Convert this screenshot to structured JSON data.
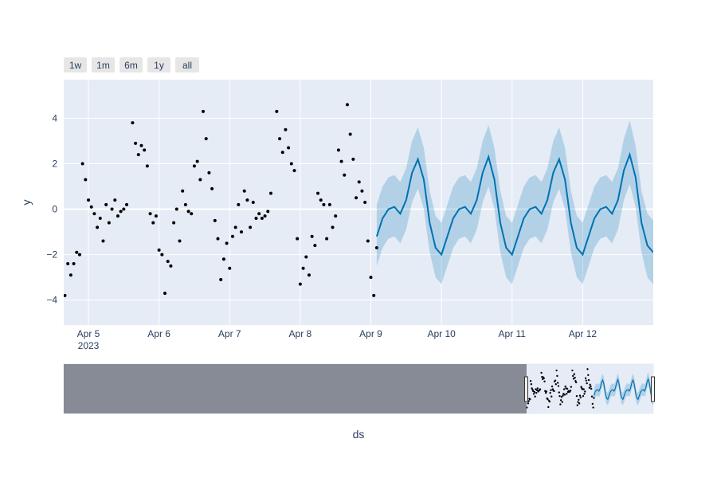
{
  "chart_data": {
    "type": "forecast",
    "x_label": "ds",
    "y_label": "y",
    "range_buttons": [
      "1w",
      "1m",
      "6m",
      "1y",
      "all"
    ],
    "xlim": [
      "2023-04-04 15:36",
      "2023-04-13 00:00"
    ],
    "xticks": [
      {
        "value": "2023-04-05 00:00",
        "label": "Apr 5\n2023"
      },
      {
        "value": "2023-04-06 00:00",
        "label": "Apr 6"
      },
      {
        "value": "2023-04-07 00:00",
        "label": "Apr 7"
      },
      {
        "value": "2023-04-08 00:00",
        "label": "Apr 8"
      },
      {
        "value": "2023-04-09 00:00",
        "label": "Apr 9"
      },
      {
        "value": "2023-04-10 00:00",
        "label": "Apr 10"
      },
      {
        "value": "2023-04-11 00:00",
        "label": "Apr 11"
      },
      {
        "value": "2023-04-12 00:00",
        "label": "Apr 12"
      }
    ],
    "ylim": [
      -5.1,
      5.7
    ],
    "yticks": [
      {
        "value": -4,
        "label": "−4"
      },
      {
        "value": -2,
        "label": "−2"
      },
      0,
      2,
      4
    ],
    "grid": true,
    "rangeslider": true,
    "series": [
      {
        "mode": "markers",
        "color": "#000000",
        "x": [
          "2023-04-04 16:00",
          "2023-04-04 17:00",
          "2023-04-04 18:00",
          "2023-04-04 19:00",
          "2023-04-04 20:00",
          "2023-04-04 21:00",
          "2023-04-04 22:00",
          "2023-04-04 23:00",
          "2023-04-05 00:00",
          "2023-04-05 01:00",
          "2023-04-05 02:00",
          "2023-04-05 03:00",
          "2023-04-05 04:00",
          "2023-04-05 05:00",
          "2023-04-05 06:00",
          "2023-04-05 07:00",
          "2023-04-05 08:00",
          "2023-04-05 09:00",
          "2023-04-05 10:00",
          "2023-04-05 11:00",
          "2023-04-05 12:00",
          "2023-04-05 13:00",
          "2023-04-05 15:00",
          "2023-04-05 16:00",
          "2023-04-05 17:00",
          "2023-04-05 18:00",
          "2023-04-05 19:00",
          "2023-04-05 20:00",
          "2023-04-05 21:00",
          "2023-04-05 22:00",
          "2023-04-05 23:00",
          "2023-04-06 00:00",
          "2023-04-06 01:00",
          "2023-04-06 02:00",
          "2023-04-06 03:00",
          "2023-04-06 04:00",
          "2023-04-06 05:00",
          "2023-04-06 06:00",
          "2023-04-06 07:00",
          "2023-04-06 08:00",
          "2023-04-06 09:00",
          "2023-04-06 10:00",
          "2023-04-06 11:00",
          "2023-04-06 12:00",
          "2023-04-06 13:00",
          "2023-04-06 14:00",
          "2023-04-06 15:00",
          "2023-04-06 16:00",
          "2023-04-06 17:00",
          "2023-04-06 18:00",
          "2023-04-06 19:00",
          "2023-04-06 20:00",
          "2023-04-06 21:00",
          "2023-04-06 22:00",
          "2023-04-06 23:00",
          "2023-04-07 00:00",
          "2023-04-07 01:00",
          "2023-04-07 02:00",
          "2023-04-07 03:00",
          "2023-04-07 04:00",
          "2023-04-07 05:00",
          "2023-04-07 06:00",
          "2023-04-07 07:00",
          "2023-04-07 08:00",
          "2023-04-07 09:00",
          "2023-04-07 10:00",
          "2023-04-07 11:00",
          "2023-04-07 12:00",
          "2023-04-07 13:00",
          "2023-04-07 14:00",
          "2023-04-07 16:00",
          "2023-04-07 17:00",
          "2023-04-07 18:00",
          "2023-04-07 19:00",
          "2023-04-07 20:00",
          "2023-04-07 21:00",
          "2023-04-07 22:00",
          "2023-04-07 23:00",
          "2023-04-08 00:00",
          "2023-04-08 01:00",
          "2023-04-08 02:00",
          "2023-04-08 03:00",
          "2023-04-08 04:00",
          "2023-04-08 05:00",
          "2023-04-08 06:00",
          "2023-04-08 07:00",
          "2023-04-08 08:00",
          "2023-04-08 09:00",
          "2023-04-08 10:00",
          "2023-04-08 11:00",
          "2023-04-08 12:00",
          "2023-04-08 13:00",
          "2023-04-08 14:00",
          "2023-04-08 15:00",
          "2023-04-08 16:00",
          "2023-04-08 17:00",
          "2023-04-08 18:00",
          "2023-04-08 19:00",
          "2023-04-08 20:00",
          "2023-04-08 21:00",
          "2023-04-08 22:00",
          "2023-04-08 23:00",
          "2023-04-09 00:00",
          "2023-04-09 01:00",
          "2023-04-09 02:00"
        ],
        "values": [
          -3.8,
          -2.4,
          -2.9,
          -2.4,
          -1.9,
          -2.0,
          2.0,
          1.3,
          0.4,
          0.1,
          -0.2,
          -0.8,
          -0.4,
          -1.4,
          0.2,
          -0.6,
          0.0,
          0.4,
          -0.3,
          -0.1,
          0.0,
          0.2,
          3.8,
          2.9,
          2.4,
          2.8,
          2.6,
          1.9,
          -0.2,
          -0.6,
          -0.3,
          -1.8,
          -2.0,
          -3.7,
          -2.3,
          -2.5,
          -0.6,
          0.0,
          -1.4,
          0.8,
          0.2,
          -0.1,
          -0.2,
          1.9,
          2.1,
          1.3,
          4.3,
          3.1,
          1.6,
          0.9,
          -0.5,
          -1.3,
          -3.1,
          -2.2,
          -1.5,
          -2.6,
          -1.2,
          -0.8,
          0.2,
          -1.0,
          0.8,
          0.4,
          -0.8,
          0.3,
          -0.4,
          -0.2,
          -0.4,
          -0.3,
          -0.1,
          0.7,
          4.3,
          3.1,
          2.5,
          3.5,
          2.7,
          2.0,
          1.7,
          -1.3,
          -3.3,
          -2.6,
          -2.1,
          -2.9,
          -1.2,
          -1.6,
          0.7,
          0.4,
          0.2,
          -1.3,
          0.2,
          -0.8,
          -0.3,
          2.6,
          2.1,
          1.5,
          4.6,
          3.3,
          2.2,
          0.5,
          1.2,
          0.8,
          0.3,
          -1.4,
          -3.0,
          -3.8,
          -1.7
        ]
      },
      {
        "mode": "lines",
        "color": "#0072b2",
        "band_color": "rgba(0,114,178,0.22)",
        "x": [
          "2023-04-09 02:00",
          "2023-04-09 04:00",
          "2023-04-09 06:00",
          "2023-04-09 08:00",
          "2023-04-09 10:00",
          "2023-04-09 12:00",
          "2023-04-09 14:00",
          "2023-04-09 16:00",
          "2023-04-09 18:00",
          "2023-04-09 20:00",
          "2023-04-09 22:00",
          "2023-04-10 00:00",
          "2023-04-10 02:00",
          "2023-04-10 04:00",
          "2023-04-10 06:00",
          "2023-04-10 08:00",
          "2023-04-10 10:00",
          "2023-04-10 12:00",
          "2023-04-10 14:00",
          "2023-04-10 16:00",
          "2023-04-10 18:00",
          "2023-04-10 20:00",
          "2023-04-10 22:00",
          "2023-04-11 00:00",
          "2023-04-11 02:00",
          "2023-04-11 04:00",
          "2023-04-11 06:00",
          "2023-04-11 08:00",
          "2023-04-11 10:00",
          "2023-04-11 12:00",
          "2023-04-11 14:00",
          "2023-04-11 16:00",
          "2023-04-11 18:00",
          "2023-04-11 20:00",
          "2023-04-11 22:00",
          "2023-04-12 00:00",
          "2023-04-12 02:00",
          "2023-04-12 04:00",
          "2023-04-12 06:00",
          "2023-04-12 08:00",
          "2023-04-12 10:00",
          "2023-04-12 12:00",
          "2023-04-12 14:00",
          "2023-04-12 16:00",
          "2023-04-12 18:00",
          "2023-04-12 20:00",
          "2023-04-12 22:00",
          "2023-04-13 00:00"
        ],
        "values": [
          -1.2,
          -0.4,
          0.0,
          0.1,
          -0.2,
          0.4,
          1.6,
          2.2,
          1.3,
          -0.6,
          -1.7,
          -2.0,
          -1.2,
          -0.4,
          0.0,
          0.1,
          -0.2,
          0.4,
          1.6,
          2.3,
          1.3,
          -0.6,
          -1.7,
          -2.0,
          -1.2,
          -0.4,
          0.0,
          0.1,
          -0.2,
          0.4,
          1.6,
          2.2,
          1.3,
          -0.6,
          -1.7,
          -2.0,
          -1.2,
          -0.4,
          0.0,
          0.1,
          -0.2,
          0.4,
          1.7,
          2.4,
          1.4,
          -0.6,
          -1.6,
          -1.9
        ],
        "lower": [
          -2.5,
          -1.7,
          -1.3,
          -1.2,
          -1.5,
          -0.9,
          0.3,
          0.9,
          0.0,
          -1.9,
          -3.0,
          -3.3,
          -2.5,
          -1.7,
          -1.3,
          -1.2,
          -1.5,
          -0.9,
          0.3,
          1.0,
          0.0,
          -1.9,
          -3.0,
          -3.3,
          -2.5,
          -1.7,
          -1.3,
          -1.2,
          -1.5,
          -0.9,
          0.3,
          0.9,
          0.0,
          -1.9,
          -3.0,
          -3.3,
          -2.5,
          -1.7,
          -1.3,
          -1.2,
          -1.5,
          -0.9,
          0.4,
          1.1,
          0.1,
          -1.9,
          -3.0,
          -3.3
        ],
        "upper": [
          0.2,
          1.0,
          1.4,
          1.5,
          1.2,
          1.8,
          3.0,
          3.6,
          2.7,
          0.8,
          -0.3,
          -0.6,
          0.2,
          1.0,
          1.4,
          1.5,
          1.2,
          1.8,
          3.0,
          3.7,
          2.7,
          0.8,
          -0.3,
          -0.6,
          0.2,
          1.0,
          1.4,
          1.5,
          1.2,
          1.8,
          3.0,
          3.6,
          2.7,
          0.8,
          -0.3,
          -0.6,
          0.2,
          1.0,
          1.4,
          1.5,
          1.2,
          1.8,
          3.1,
          3.9,
          2.8,
          0.8,
          -0.2,
          -0.5
        ]
      }
    ]
  }
}
